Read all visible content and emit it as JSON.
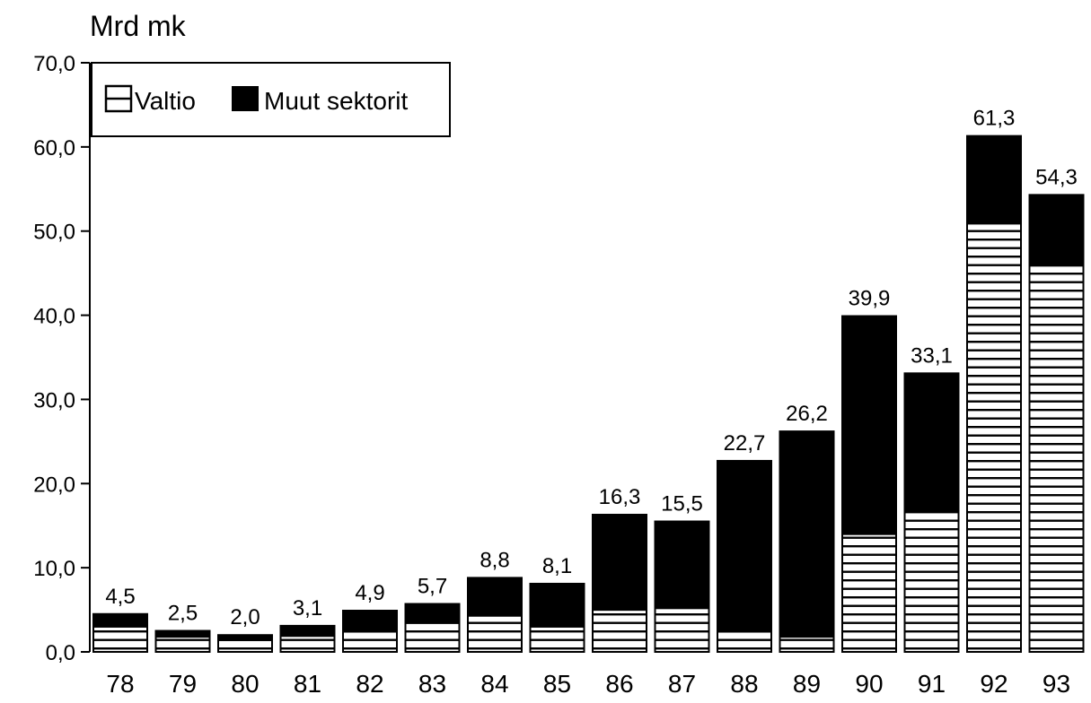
{
  "chart_data": {
    "type": "bar",
    "stacked": true,
    "unit_label": "Mrd mk",
    "categories": [
      "78",
      "79",
      "80",
      "81",
      "82",
      "83",
      "84",
      "85",
      "86",
      "87",
      "88",
      "89",
      "90",
      "91",
      "92",
      "93"
    ],
    "series": [
      {
        "name": "Valtio",
        "pattern": "horizontal-stripes",
        "color": "#ffffff",
        "values": [
          3.0,
          1.8,
          1.4,
          1.9,
          2.4,
          3.6,
          4.3,
          3.0,
          5.0,
          5.2,
          2.4,
          1.8,
          14.0,
          16.8,
          50.9,
          45.9
        ]
      },
      {
        "name": "Muut sektorit",
        "pattern": "solid",
        "color": "#000000",
        "values": [
          1.5,
          0.7,
          0.6,
          1.2,
          2.5,
          2.1,
          4.5,
          5.1,
          11.3,
          10.3,
          20.3,
          24.4,
          25.9,
          16.3,
          10.4,
          8.4
        ]
      }
    ],
    "totals": [
      4.5,
      2.5,
      2.0,
      3.1,
      4.9,
      5.7,
      8.8,
      8.1,
      16.3,
      15.5,
      22.7,
      26.2,
      39.9,
      33.1,
      61.3,
      54.3
    ],
    "total_labels": [
      "4,5",
      "2,5",
      "2,0",
      "3,1",
      "4,9",
      "5,7",
      "8,8",
      "8,1",
      "16,3",
      "15,5",
      "22,7",
      "26,2",
      "39,9",
      "33,1",
      "61,3",
      "54,3"
    ],
    "y_ticks": [
      0,
      10,
      20,
      30,
      40,
      50,
      60,
      70
    ],
    "y_tick_labels": [
      "0,0",
      "10,0",
      "20,0",
      "30,0",
      "40,0",
      "50,0",
      "60,0",
      "70,0"
    ],
    "ylim": [
      0,
      70
    ],
    "grid": false,
    "legend_position": "top-left"
  }
}
